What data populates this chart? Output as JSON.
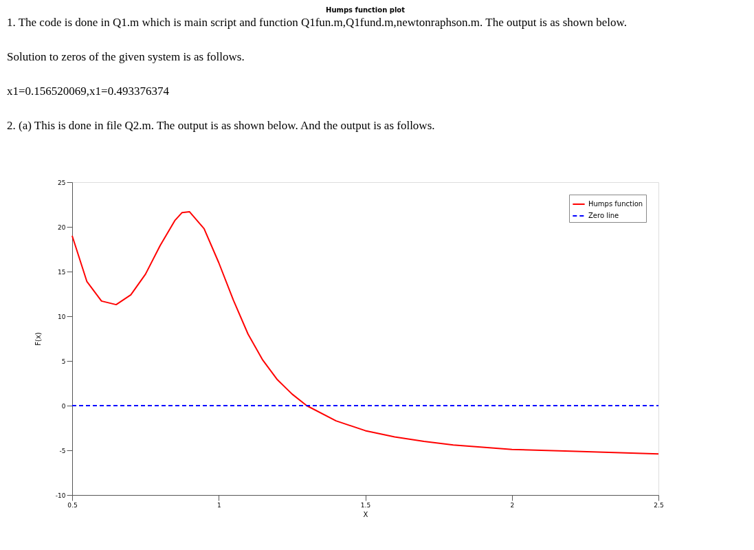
{
  "chart_data": {
    "type": "line",
    "title": "Humps function plot",
    "xlabel": "X",
    "ylabel": "F(x)",
    "annotations": [
      "1. The code is done in Q1.m which is main script and function Q1fun.m,Q1fund.m,newtonraphson.m. The output is as shown below.",
      "Solution to zeros of the given system is as follows.",
      "x1=0.156520069,x1=0.493376374",
      "2. (a) This is done in file Q2.m. The output is as shown below. And the output is as follows."
    ],
    "xlim": [
      0.5,
      2.5
    ],
    "xticks": [
      0.5,
      1,
      1.5,
      2,
      2.5
    ],
    "ylim": [
      -10,
      25
    ],
    "yticks": [
      -10,
      -5,
      0,
      5,
      10,
      15,
      20,
      25
    ],
    "grid": false,
    "legend": "top right",
    "marker": "none",
    "series": [
      {
        "name": "Humps function",
        "color": "#ff0000",
        "line_style": "solid",
        "x": [
          0.5,
          0.55,
          0.6,
          0.65,
          0.7,
          0.75,
          0.8,
          0.85,
          0.875,
          0.9,
          0.95,
          1.0,
          1.05,
          1.1,
          1.15,
          1.2,
          1.25,
          1.3,
          1.4,
          1.5,
          1.6,
          1.7,
          1.8,
          2.0,
          2.2,
          2.5
        ],
        "values": [
          19.0,
          13.9,
          11.7,
          11.3,
          12.4,
          14.7,
          17.9,
          20.7,
          21.6,
          21.7,
          19.8,
          16.0,
          11.8,
          8.0,
          5.1,
          2.9,
          1.3,
          0.0,
          -1.7,
          -2.8,
          -3.5,
          -4.0,
          -4.4,
          -4.9,
          -5.1,
          -5.4
        ]
      },
      {
        "name": "Zero line",
        "color": "#0000ff",
        "line_style": "dashed",
        "x": [
          0.5,
          2.5
        ],
        "values": [
          0,
          0
        ]
      }
    ]
  }
}
